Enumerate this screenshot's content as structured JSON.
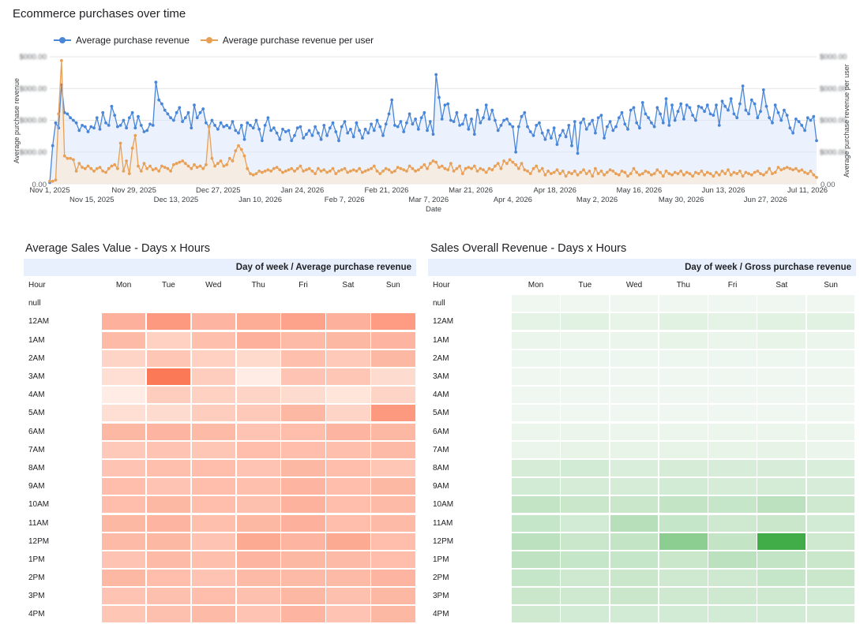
{
  "chart": {
    "title": "Ecommerce purchases over time",
    "legend": [
      {
        "label": "Average purchase revenue",
        "color": "#4a86d8"
      },
      {
        "label": "Average purchase revenue per user",
        "color": "#e8a057"
      }
    ],
    "left_axis_label": "Average purchase revenue",
    "right_axis_label": "Average purchase revenue per user",
    "x_axis_label": "Date",
    "y_tick_zero": "0.00",
    "y_tick_hidden": "$000.00",
    "x_ticks_top": [
      "Nov 1, 2025",
      "Nov 29, 2025",
      "Dec 27, 2025",
      "Jan 24, 2026",
      "Feb 21, 2026",
      "Mar 21, 2026",
      "Apr 18, 2026",
      "May 16, 2026",
      "Jun 13, 2026",
      "Jul 11, 2026"
    ],
    "x_ticks_bottom": [
      "Nov 15, 2025",
      "Dec 13, 2025",
      "Jan 10, 2026",
      "Feb 7, 2026",
      "Mar 7, 2026",
      "Apr 4, 2026",
      "May 2, 2026",
      "May 30, 2026",
      "Jun 27, 2026"
    ]
  },
  "chart_data": {
    "type": "line",
    "title": "Ecommerce purchases over time",
    "xlabel": "Date",
    "ylabel": "Average purchase revenue",
    "y2label": "Average purchase revenue per user",
    "x_start": "Nov 1, 2025",
    "x_end": "Jul 14, 2026",
    "ylim_relative": [
      0,
      1
    ],
    "series": [
      {
        "name": "Average purchase revenue",
        "axis": "left",
        "values_relative": [
          0.01,
          0.3,
          0.48,
          0.44,
          0.78,
          0.56,
          0.55,
          0.52,
          0.5,
          0.48,
          0.42,
          0.46,
          0.45,
          0.41,
          0.45,
          0.44,
          0.52,
          0.43,
          0.56,
          0.48,
          0.46,
          0.61,
          0.54,
          0.45,
          0.46,
          0.5,
          0.44,
          0.52,
          0.56,
          0.44,
          0.53,
          0.46,
          0.41,
          0.42,
          0.47,
          0.46,
          0.8,
          0.66,
          0.63,
          0.58,
          0.55,
          0.52,
          0.5,
          0.56,
          0.6,
          0.49,
          0.52,
          0.56,
          0.44,
          0.62,
          0.52,
          0.56,
          0.59,
          0.48,
          0.45,
          0.5,
          0.46,
          0.43,
          0.48,
          0.45,
          0.46,
          0.44,
          0.49,
          0.42,
          0.4,
          0.46,
          0.35,
          0.48,
          0.46,
          0.44,
          0.5,
          0.43,
          0.34,
          0.46,
          0.52,
          0.42,
          0.44,
          0.4,
          0.35,
          0.43,
          0.41,
          0.42,
          0.34,
          0.38,
          0.44,
          0.45,
          0.36,
          0.39,
          0.42,
          0.38,
          0.45,
          0.4,
          0.35,
          0.46,
          0.38,
          0.44,
          0.48,
          0.41,
          0.34,
          0.45,
          0.49,
          0.4,
          0.43,
          0.37,
          0.48,
          0.42,
          0.36,
          0.43,
          0.4,
          0.47,
          0.42,
          0.5,
          0.45,
          0.38,
          0.47,
          0.55,
          0.66,
          0.46,
          0.45,
          0.49,
          0.41,
          0.48,
          0.55,
          0.47,
          0.51,
          0.43,
          0.52,
          0.56,
          0.42,
          0.49,
          0.39,
          0.86,
          0.68,
          0.51,
          0.62,
          0.63,
          0.5,
          0.49,
          0.56,
          0.46,
          0.47,
          0.54,
          0.43,
          0.51,
          0.39,
          0.58,
          0.48,
          0.52,
          0.62,
          0.51,
          0.58,
          0.5,
          0.42,
          0.46,
          0.5,
          0.51,
          0.47,
          0.45,
          0.25,
          0.45,
          0.53,
          0.56,
          0.45,
          0.41,
          0.38,
          0.46,
          0.48,
          0.4,
          0.35,
          0.42,
          0.36,
          0.44,
          0.31,
          0.38,
          0.42,
          0.37,
          0.46,
          0.3,
          0.49,
          0.24,
          0.48,
          0.51,
          0.43,
          0.47,
          0.5,
          0.4,
          0.52,
          0.54,
          0.36,
          0.45,
          0.49,
          0.42,
          0.45,
          0.52,
          0.56,
          0.47,
          0.43,
          0.58,
          0.6,
          0.48,
          0.44,
          0.64,
          0.55,
          0.52,
          0.48,
          0.45,
          0.6,
          0.55,
          0.48,
          0.67,
          0.46,
          0.62,
          0.5,
          0.57,
          0.63,
          0.51,
          0.62,
          0.6,
          0.54,
          0.5,
          0.61,
          0.6,
          0.57,
          0.62,
          0.55,
          0.54,
          0.62,
          0.46,
          0.65,
          0.61,
          0.58,
          0.67,
          0.55,
          0.52,
          0.63,
          0.77,
          0.58,
          0.55,
          0.66,
          0.63,
          0.52,
          0.57,
          0.74,
          0.61,
          0.52,
          0.48,
          0.62,
          0.56,
          0.5,
          0.58,
          0.54,
          0.44,
          0.4,
          0.51,
          0.49,
          0.46,
          0.42,
          0.52,
          0.5,
          0.53,
          0.34
        ]
      },
      {
        "name": "Average purchase revenue per user",
        "axis": "right",
        "values_relative": [
          0.02,
          0.02,
          0.03,
          0.55,
          0.97,
          0.22,
          0.2,
          0.2,
          0.19,
          0.1,
          0.16,
          0.13,
          0.12,
          0.14,
          0.12,
          0.1,
          0.12,
          0.13,
          0.1,
          0.09,
          0.12,
          0.14,
          0.15,
          0.12,
          0.32,
          0.1,
          0.18,
          0.08,
          0.28,
          0.38,
          0.14,
          0.1,
          0.16,
          0.12,
          0.14,
          0.11,
          0.12,
          0.1,
          0.14,
          0.13,
          0.12,
          0.1,
          0.15,
          0.16,
          0.17,
          0.18,
          0.16,
          0.14,
          0.12,
          0.15,
          0.13,
          0.14,
          0.12,
          0.15,
          0.45,
          0.2,
          0.14,
          0.16,
          0.18,
          0.14,
          0.15,
          0.2,
          0.18,
          0.26,
          0.3,
          0.27,
          0.22,
          0.12,
          0.08,
          0.07,
          0.08,
          0.1,
          0.09,
          0.1,
          0.11,
          0.1,
          0.12,
          0.13,
          0.11,
          0.09,
          0.1,
          0.11,
          0.12,
          0.1,
          0.12,
          0.14,
          0.1,
          0.11,
          0.12,
          0.1,
          0.08,
          0.12,
          0.1,
          0.11,
          0.09,
          0.1,
          0.12,
          0.08,
          0.1,
          0.11,
          0.12,
          0.09,
          0.1,
          0.11,
          0.1,
          0.12,
          0.09,
          0.1,
          0.11,
          0.12,
          0.14,
          0.1,
          0.08,
          0.1,
          0.12,
          0.11,
          0.09,
          0.1,
          0.13,
          0.12,
          0.11,
          0.1,
          0.14,
          0.12,
          0.1,
          0.11,
          0.13,
          0.15,
          0.12,
          0.16,
          0.18,
          0.17,
          0.13,
          0.14,
          0.12,
          0.11,
          0.16,
          0.1,
          0.12,
          0.14,
          0.08,
          0.12,
          0.13,
          0.12,
          0.14,
          0.1,
          0.12,
          0.11,
          0.09,
          0.12,
          0.11,
          0.14,
          0.16,
          0.12,
          0.18,
          0.16,
          0.19,
          0.17,
          0.15,
          0.12,
          0.16,
          0.11,
          0.1,
          0.08,
          0.12,
          0.14,
          0.1,
          0.12,
          0.07,
          0.1,
          0.08,
          0.09,
          0.11,
          0.08,
          0.1,
          0.06,
          0.09,
          0.08,
          0.1,
          0.07,
          0.09,
          0.11,
          0.08,
          0.1,
          0.06,
          0.12,
          0.08,
          0.1,
          0.07,
          0.09,
          0.11,
          0.1,
          0.08,
          0.07,
          0.1,
          0.09,
          0.06,
          0.08,
          0.12,
          0.09,
          0.07,
          0.08,
          0.1,
          0.09,
          0.07,
          0.08,
          0.11,
          0.09,
          0.06,
          0.1,
          0.08,
          0.07,
          0.09,
          0.08,
          0.1,
          0.07,
          0.09,
          0.08,
          0.06,
          0.09,
          0.08,
          0.1,
          0.07,
          0.09,
          0.08,
          0.06,
          0.09,
          0.07,
          0.1,
          0.08,
          0.11,
          0.07,
          0.09,
          0.08,
          0.1,
          0.06,
          0.09,
          0.08,
          0.07,
          0.09,
          0.1,
          0.08,
          0.07,
          0.09,
          0.12,
          0.08,
          0.09,
          0.13,
          0.11,
          0.12,
          0.13,
          0.12,
          0.11,
          0.12,
          0.1,
          0.11,
          0.09,
          0.08,
          0.1,
          0.07,
          0.05
        ]
      }
    ]
  },
  "table_left": {
    "title": "Average Sales Value - Days x Hours",
    "header": "Day of week / Average purchase revenue",
    "hour_header": "Hour",
    "days": [
      "Mon",
      "Tue",
      "Wed",
      "Thu",
      "Fri",
      "Sat",
      "Sun"
    ],
    "hours": [
      "null",
      "12AM",
      "1AM",
      "2AM",
      "3AM",
      "4AM",
      "5AM",
      "6AM",
      "7AM",
      "8AM",
      "9AM",
      "10AM",
      "11AM",
      "12PM",
      "1PM",
      "2PM",
      "3PM",
      "4PM"
    ],
    "intensity": [
      [
        0,
        0,
        0,
        0,
        0,
        0,
        0
      ],
      [
        0.45,
        0.62,
        0.42,
        0.48,
        0.55,
        0.45,
        0.6
      ],
      [
        0.38,
        0.22,
        0.35,
        0.45,
        0.38,
        0.4,
        0.42
      ],
      [
        0.2,
        0.3,
        0.22,
        0.16,
        0.35,
        0.28,
        0.4
      ],
      [
        0.12,
        0.85,
        0.25,
        0.02,
        0.32,
        0.3,
        0.15
      ],
      [
        0.02,
        0.25,
        0.22,
        0.2,
        0.15,
        0.08,
        0.2
      ],
      [
        0.12,
        0.15,
        0.25,
        0.28,
        0.4,
        0.2,
        0.62
      ],
      [
        0.4,
        0.42,
        0.38,
        0.32,
        0.36,
        0.42,
        0.4
      ],
      [
        0.28,
        0.32,
        0.3,
        0.36,
        0.36,
        0.35,
        0.38
      ],
      [
        0.32,
        0.35,
        0.36,
        0.32,
        0.4,
        0.36,
        0.3
      ],
      [
        0.36,
        0.32,
        0.36,
        0.35,
        0.42,
        0.36,
        0.4
      ],
      [
        0.36,
        0.4,
        0.36,
        0.34,
        0.44,
        0.36,
        0.38
      ],
      [
        0.4,
        0.42,
        0.35,
        0.4,
        0.45,
        0.36,
        0.38
      ],
      [
        0.38,
        0.4,
        0.32,
        0.5,
        0.42,
        0.5,
        0.36
      ],
      [
        0.32,
        0.38,
        0.35,
        0.42,
        0.4,
        0.38,
        0.36
      ],
      [
        0.4,
        0.36,
        0.32,
        0.38,
        0.38,
        0.38,
        0.42
      ],
      [
        0.32,
        0.34,
        0.36,
        0.34,
        0.4,
        0.34,
        0.4
      ],
      [
        0.3,
        0.34,
        0.38,
        0.32,
        0.42,
        0.32,
        0.4
      ]
    ]
  },
  "table_right": {
    "title": "Sales Overall Revenue - Days x Hours",
    "header": "Day of week / Gross purchase revenue",
    "hour_header": "Hour",
    "days": [
      "Mon",
      "Tue",
      "Wed",
      "Thu",
      "Fri",
      "Sat",
      "Sun"
    ],
    "hours": [
      "null",
      "12AM",
      "1AM",
      "2AM",
      "3AM",
      "4AM",
      "5AM",
      "6AM",
      "7AM",
      "8AM",
      "9AM",
      "10AM",
      "11AM",
      "12PM",
      "1PM",
      "2PM",
      "3PM",
      "4PM"
    ],
    "intensity": [
      [
        0.02,
        0.02,
        0.02,
        0.02,
        0.02,
        0.02,
        0.02
      ],
      [
        0.08,
        0.1,
        0.06,
        0.1,
        0.08,
        0.1,
        0.1
      ],
      [
        0.05,
        0.04,
        0.05,
        0.06,
        0.05,
        0.06,
        0.05
      ],
      [
        0.03,
        0.03,
        0.03,
        0.03,
        0.03,
        0.03,
        0.03
      ],
      [
        0.02,
        0.02,
        0.02,
        0.02,
        0.02,
        0.02,
        0.02
      ],
      [
        0.02,
        0.02,
        0.02,
        0.02,
        0.02,
        0.02,
        0.02
      ],
      [
        0.02,
        0.02,
        0.02,
        0.02,
        0.02,
        0.02,
        0.02
      ],
      [
        0.04,
        0.05,
        0.04,
        0.04,
        0.04,
        0.04,
        0.04
      ],
      [
        0.05,
        0.06,
        0.06,
        0.06,
        0.06,
        0.07,
        0.05
      ],
      [
        0.16,
        0.18,
        0.14,
        0.16,
        0.15,
        0.15,
        0.14
      ],
      [
        0.18,
        0.16,
        0.16,
        0.18,
        0.16,
        0.17,
        0.15
      ],
      [
        0.26,
        0.22,
        0.22,
        0.26,
        0.24,
        0.3,
        0.2
      ],
      [
        0.24,
        0.18,
        0.32,
        0.24,
        0.2,
        0.22,
        0.18
      ],
      [
        0.3,
        0.22,
        0.26,
        0.55,
        0.26,
        0.95,
        0.2
      ],
      [
        0.28,
        0.24,
        0.24,
        0.22,
        0.3,
        0.26,
        0.22
      ],
      [
        0.24,
        0.2,
        0.22,
        0.2,
        0.2,
        0.24,
        0.22
      ],
      [
        0.22,
        0.2,
        0.22,
        0.2,
        0.2,
        0.2,
        0.18
      ],
      [
        0.2,
        0.18,
        0.18,
        0.18,
        0.18,
        0.18,
        0.16
      ]
    ]
  }
}
